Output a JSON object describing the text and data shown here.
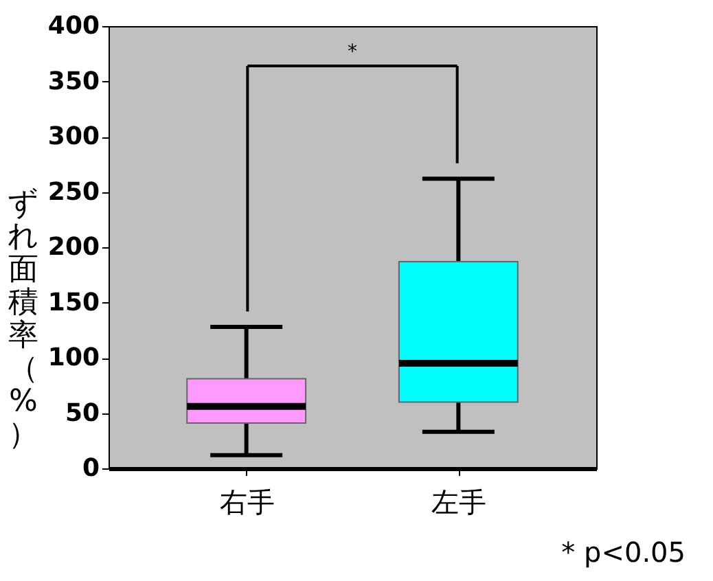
{
  "chart_data": {
    "type": "box",
    "ylabel": "ずれ面積率（%）",
    "categories": [
      "右手",
      "左手"
    ],
    "boxes": [
      {
        "low": 12,
        "q1": 41,
        "median": 56,
        "q3": 81,
        "high": 128
      },
      {
        "low": 33,
        "q1": 60,
        "median": 95,
        "q3": 187,
        "high": 262
      }
    ],
    "colors": [
      "#ff99ff",
      "#00ffff"
    ],
    "ylim": [
      0,
      400
    ],
    "yticks": [
      0,
      50,
      100,
      150,
      200,
      250,
      300,
      350,
      400
    ],
    "grid": false,
    "annotations": [
      "*",
      "* p<0.05"
    ]
  }
}
